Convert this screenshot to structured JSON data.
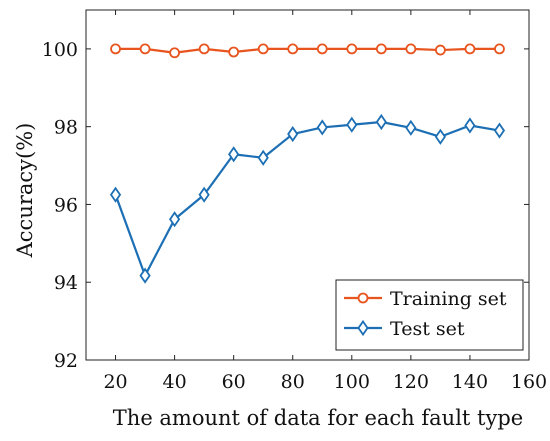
{
  "chart_data": {
    "type": "line",
    "title": "",
    "xlabel": "The amount of data for each fault type",
    "ylabel": "Accuracy(%)",
    "x": [
      20,
      30,
      40,
      50,
      60,
      70,
      80,
      90,
      100,
      110,
      120,
      130,
      140,
      150
    ],
    "xlim": [
      10,
      160
    ],
    "ylim": [
      92,
      101
    ],
    "xticks": [
      20,
      40,
      60,
      80,
      100,
      120,
      140,
      160
    ],
    "yticks": [
      92,
      94,
      96,
      98,
      100
    ],
    "grid": false,
    "legend_position": "bottom-right",
    "series": [
      {
        "name": "Training set",
        "color": "#e8541e",
        "marker": "circle",
        "values": [
          100.0,
          100.0,
          99.9,
          100.0,
          99.92,
          100.0,
          100.0,
          100.0,
          100.0,
          100.0,
          100.0,
          99.97,
          100.0,
          100.0
        ]
      },
      {
        "name": "Test set",
        "color": "#1c6fb4",
        "marker": "diamond",
        "values": [
          96.25,
          94.17,
          95.62,
          96.25,
          97.29,
          97.2,
          97.81,
          97.98,
          98.05,
          98.12,
          97.97,
          97.74,
          98.03,
          97.9
        ]
      }
    ]
  }
}
